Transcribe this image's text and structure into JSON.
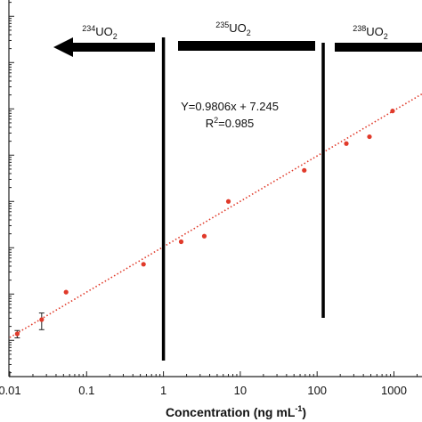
{
  "chart_data": {
    "type": "scatter",
    "title": "",
    "xlabel": "Concentration (ng mL",
    "xlabel_sup": "-1",
    "xlabel_end": ")",
    "ylabel": "",
    "x_scale": "log",
    "y_scale": "log",
    "xlim": [
      0.01,
      3000
    ],
    "x_ticks": [
      0.01,
      0.1,
      1,
      10,
      100,
      1000
    ],
    "x_tick_labels": [
      "0.01",
      "0.1",
      "1",
      "10",
      "100",
      "1000"
    ],
    "grid": false,
    "points": [
      {
        "x": 0.0125,
        "y": 0.0138,
        "err": 0.0025
      },
      {
        "x": 0.026,
        "y": 0.028,
        "err": 0.011
      },
      {
        "x": 0.054,
        "y": 0.11
      },
      {
        "x": 0.55,
        "y": 0.44
      },
      {
        "x": 1.7,
        "y": 1.35
      },
      {
        "x": 3.4,
        "y": 1.78
      },
      {
        "x": 7.0,
        "y": 10.0
      },
      {
        "x": 68,
        "y": 47
      },
      {
        "x": 240,
        "y": 178
      },
      {
        "x": 480,
        "y": 250
      },
      {
        "x": 960,
        "y": 900
      }
    ],
    "trendline": {
      "equation": "Y=0.9806x + 7.245",
      "r2_label": "R",
      "r2_sup": "2",
      "r2_value": "=0.985",
      "slope": 0.9806,
      "style": "dotted",
      "color": "#e03a2a"
    },
    "regions": [
      {
        "sup": "234",
        "label": "UO",
        "sub": "2",
        "direction": "left",
        "divider_x": 1
      },
      {
        "sup": "235",
        "label": "UO",
        "sub": "2",
        "direction": "none",
        "divider_x": 120
      },
      {
        "sup": "238",
        "label": "UO",
        "sub": "2",
        "direction": "right"
      }
    ],
    "marker_color": "#e03a2a"
  }
}
